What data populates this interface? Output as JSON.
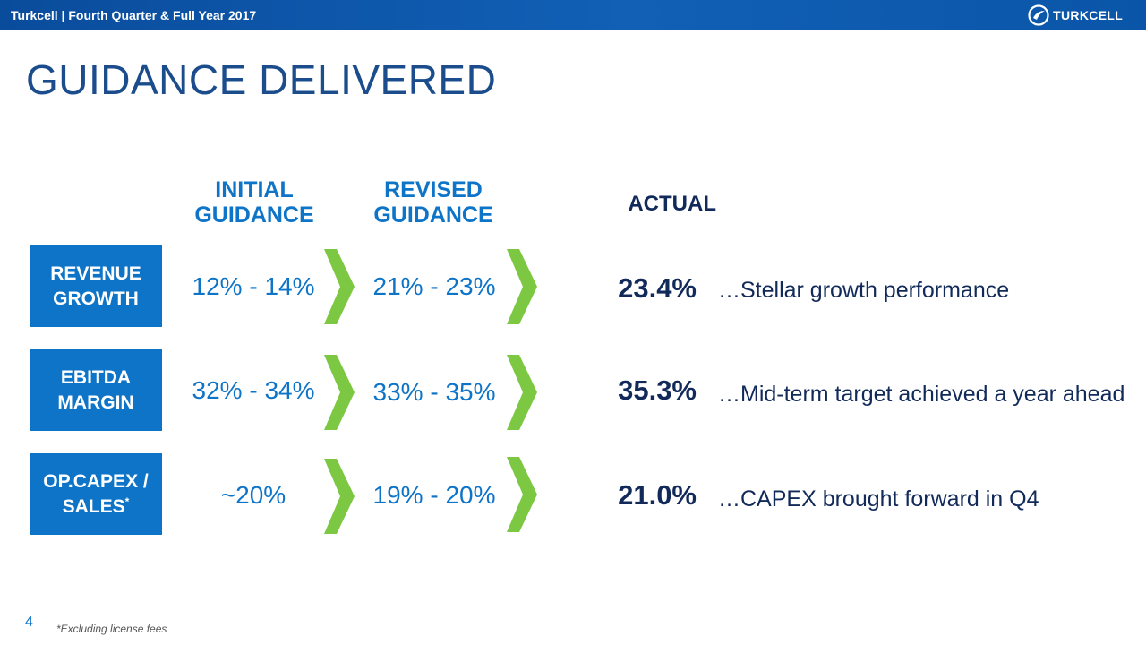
{
  "header": {
    "title": "Turkcell | Fourth Quarter & Full Year 2017",
    "logo_text": "TURKCELL",
    "logo_icon": "turkcell-leaf-icon"
  },
  "slide": {
    "title": "GUIDANCE DELIVERED",
    "columns": {
      "initial_line1": "INITIAL",
      "initial_line2": "GUIDANCE",
      "revised_line1": "REVISED",
      "revised_line2": "GUIDANCE",
      "actual": "ACTUAL"
    },
    "rows": [
      {
        "label_line1": "REVENUE",
        "label_line2": "GROWTH",
        "label_mark": "",
        "initial": "12% - 14%",
        "revised": "21% - 23%",
        "actual": "23.4%",
        "comment": "…Stellar growth performance"
      },
      {
        "label_line1": "EBITDA",
        "label_line2": "MARGIN",
        "label_mark": "",
        "initial": "32% - 34%",
        "revised": "33% - 35%",
        "actual": "35.3%",
        "comment": "…Mid-term target achieved a year ahead"
      },
      {
        "label_line1": "OP.CAPEX /",
        "label_line2": "SALES",
        "label_mark": "*",
        "initial": "~20%",
        "revised": "19% - 20%",
        "actual": "21.0%",
        "comment": "…CAPEX brought forward in Q4"
      }
    ],
    "arrow_color": "#7dc843",
    "accent_color": "#0e74c8",
    "dark_text_color": "#122a5a"
  },
  "footer": {
    "page_number": "4",
    "footnote": "*Excluding license fees"
  }
}
